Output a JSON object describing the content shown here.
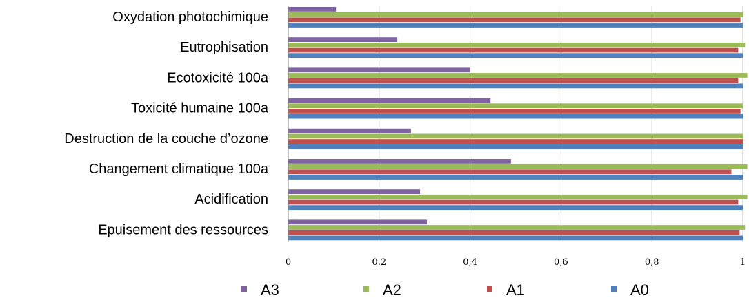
{
  "chart_data": {
    "type": "bar",
    "orientation": "horizontal",
    "categories": [
      "Oxydation photochimique",
      "Eutrophisation",
      "Ecotoxicité 100a",
      "Toxicité humaine 100a",
      "Destruction de la couche d’ozone",
      "Changement climatique 100a",
      "Acidification",
      "Epuisement des ressources"
    ],
    "series": [
      {
        "name": "A3",
        "color": "#8064A2",
        "values": [
          0.105,
          0.24,
          0.4,
          0.445,
          0.27,
          0.49,
          0.29,
          0.305
        ]
      },
      {
        "name": "A2",
        "color": "#9BBB59",
        "values": [
          1.0,
          1.005,
          1.01,
          1.0,
          1.0,
          1.01,
          1.01,
          1.005
        ]
      },
      {
        "name": "A1",
        "color": "#C0504D",
        "values": [
          0.995,
          0.99,
          0.99,
          0.995,
          1.0,
          0.975,
          0.99,
          0.993
        ]
      },
      {
        "name": "A0",
        "color": "#4F81BD",
        "values": [
          1.0,
          1.0,
          1.0,
          1.0,
          1.0,
          1.0,
          1.0,
          1.0
        ]
      }
    ],
    "xlim": [
      0,
      1
    ],
    "xticks": [
      "0",
      "0,2",
      "0,4",
      "0,6",
      "0,8",
      "1"
    ],
    "grid": "vertical",
    "legend_position": "bottom",
    "title": "",
    "xlabel": "",
    "ylabel": ""
  }
}
